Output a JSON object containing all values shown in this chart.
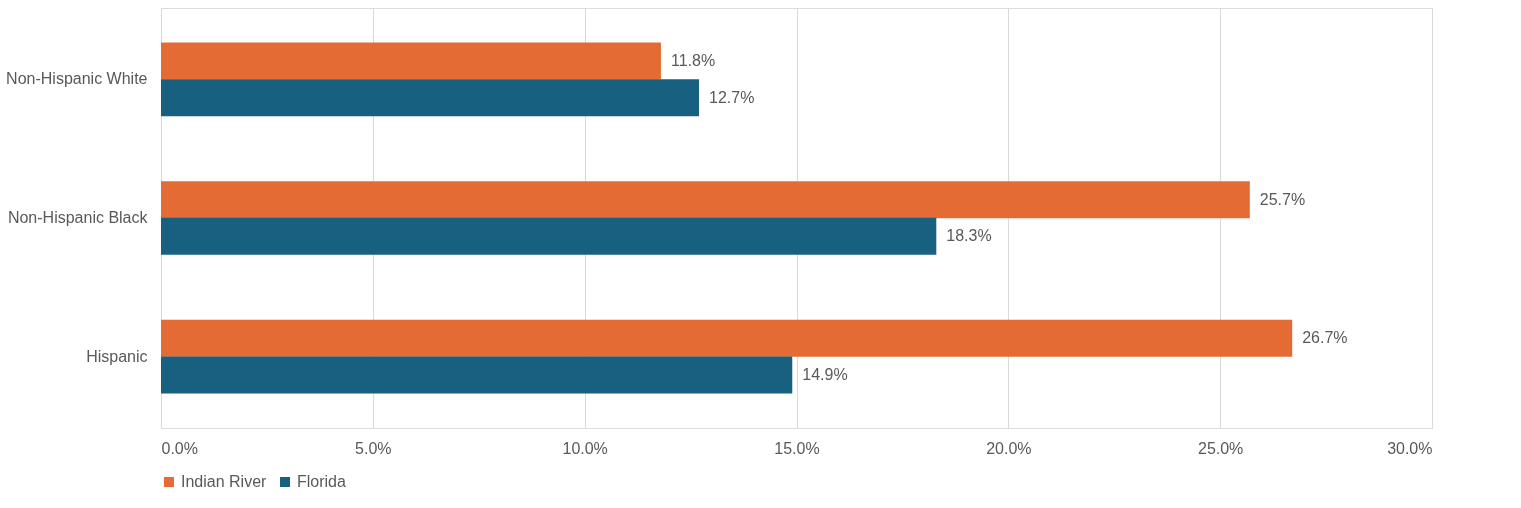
{
  "chart_data": {
    "type": "bar",
    "orientation": "horizontal",
    "categories": [
      "Non-Hispanic White",
      "Non-Hispanic Black",
      "Hispanic"
    ],
    "series": [
      {
        "name": "Indian River",
        "color": "#e46c34",
        "values": [
          11.8,
          25.7,
          26.7
        ],
        "value_labels": [
          "11.8%",
          "25.7%",
          "26.7%"
        ]
      },
      {
        "name": "Florida",
        "color": "#17607f",
        "values": [
          12.7,
          18.3,
          14.9
        ],
        "value_labels": [
          "12.7%",
          "18.3%",
          "14.9%"
        ]
      }
    ],
    "xlim": [
      0,
      30
    ],
    "xticks": [
      {
        "value": 0,
        "label": "0.0%"
      },
      {
        "value": 5,
        "label": "5.0%"
      },
      {
        "value": 10,
        "label": "10.0%"
      },
      {
        "value": 15,
        "label": "15.0%"
      },
      {
        "value": 20,
        "label": "20.0%"
      },
      {
        "value": 25,
        "label": "25.0%"
      },
      {
        "value": 30,
        "label": "30.0%"
      }
    ],
    "grid": "x",
    "legend": "bottom"
  }
}
